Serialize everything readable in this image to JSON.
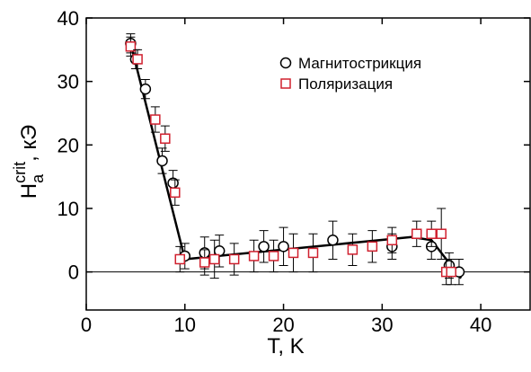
{
  "chart_data": {
    "type": "scatter",
    "xlabel": "T, K",
    "ylabel": {
      "base": "H",
      "sub": "a",
      "sup": "crit",
      "unit": ", кЭ"
    },
    "xlim": [
      0,
      45
    ],
    "ylim": [
      -6,
      40
    ],
    "xticks": [
      0,
      10,
      20,
      30,
      40
    ],
    "yticks": [
      0,
      10,
      20,
      30,
      40
    ],
    "hline": 0,
    "legend": "top-right",
    "series": [
      {
        "name": "Магнитострикция",
        "marker": "circle",
        "color": "#000000",
        "x": [
          4.5,
          5,
          6,
          7.7,
          8.8,
          10,
          12,
          13.5,
          18,
          20,
          25,
          31,
          35,
          36.8,
          37.8
        ],
        "values": [
          36,
          33.5,
          28.8,
          17.5,
          14,
          2.5,
          3,
          3.3,
          4,
          4,
          5,
          4,
          4,
          1,
          0
        ],
        "errors": [
          1.5,
          1.5,
          1.5,
          2,
          2,
          2,
          2.5,
          2.5,
          2.5,
          3,
          3,
          2,
          2,
          2,
          2
        ]
      },
      {
        "name": "Поляризация",
        "marker": "square",
        "color": "#d0202e",
        "x": [
          4.5,
          5.2,
          7,
          8,
          9,
          9.5,
          12,
          13,
          15,
          17,
          19,
          21,
          23,
          27,
          29,
          31,
          33.5,
          35,
          36,
          36.5,
          37
        ],
        "values": [
          35.5,
          33.5,
          24,
          21,
          12.5,
          2,
          1.5,
          2,
          2,
          2.5,
          2.5,
          3,
          3,
          3.5,
          4,
          5,
          6,
          6,
          6,
          0,
          0
        ],
        "errors": [
          1.5,
          1.5,
          2,
          2,
          2,
          2,
          2,
          3,
          2.5,
          2.5,
          2.5,
          3,
          3,
          2.5,
          2.5,
          2,
          2,
          2,
          4,
          2,
          2
        ]
      }
    ],
    "fit": {
      "color": "#000000",
      "x": [
        4.5,
        10,
        33,
        35,
        36.5,
        38
      ],
      "values": [
        36,
        2,
        5.5,
        5,
        2,
        -1
      ]
    }
  }
}
